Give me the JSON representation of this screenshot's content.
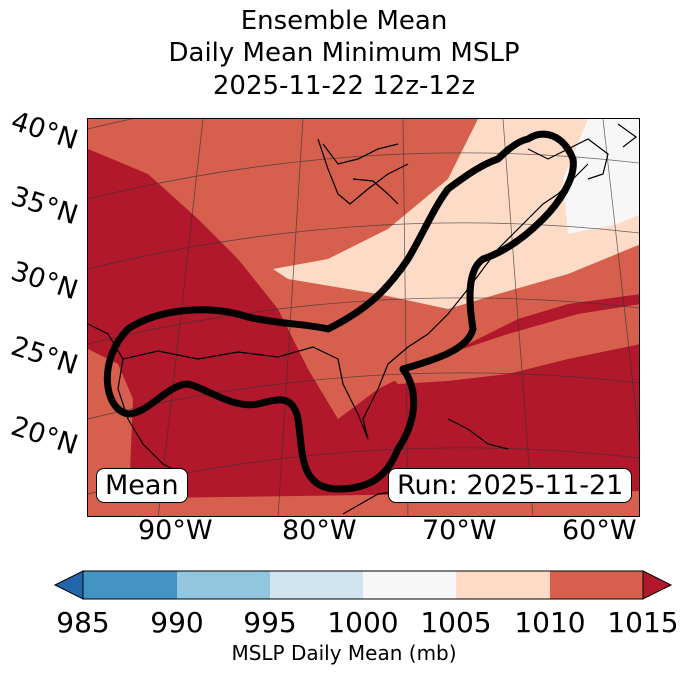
{
  "title": {
    "line1": "Ensemble Mean",
    "line2": "Daily Mean Minimum MSLP",
    "line3": "2025-11-22 12z-12z"
  },
  "map": {
    "lat_labels": [
      "40°N",
      "35°N",
      "30°N",
      "25°N",
      "20°N"
    ],
    "lon_labels": [
      "90°W",
      "80°W",
      "70°W",
      "60°W"
    ],
    "badge_left": "Mean",
    "badge_right": "Run: 2025-11-21",
    "contour": "1015 mb threshold outline (black)"
  },
  "colorbar": {
    "label": "MSLP Daily Mean (mb)",
    "ticks": [
      "985",
      "990",
      "995",
      "1000",
      "1005",
      "1010",
      "1015"
    ],
    "colors": {
      "below": "#2166ac",
      "985_990": "#4393c3",
      "990_995": "#92c5de",
      "995_1000": "#d1e5f0",
      "1000_1005": "#f7f7f7",
      "1005_1010": "#fddbc7",
      "1010_1015": "#d6604d",
      "above": "#b2182b"
    }
  }
}
